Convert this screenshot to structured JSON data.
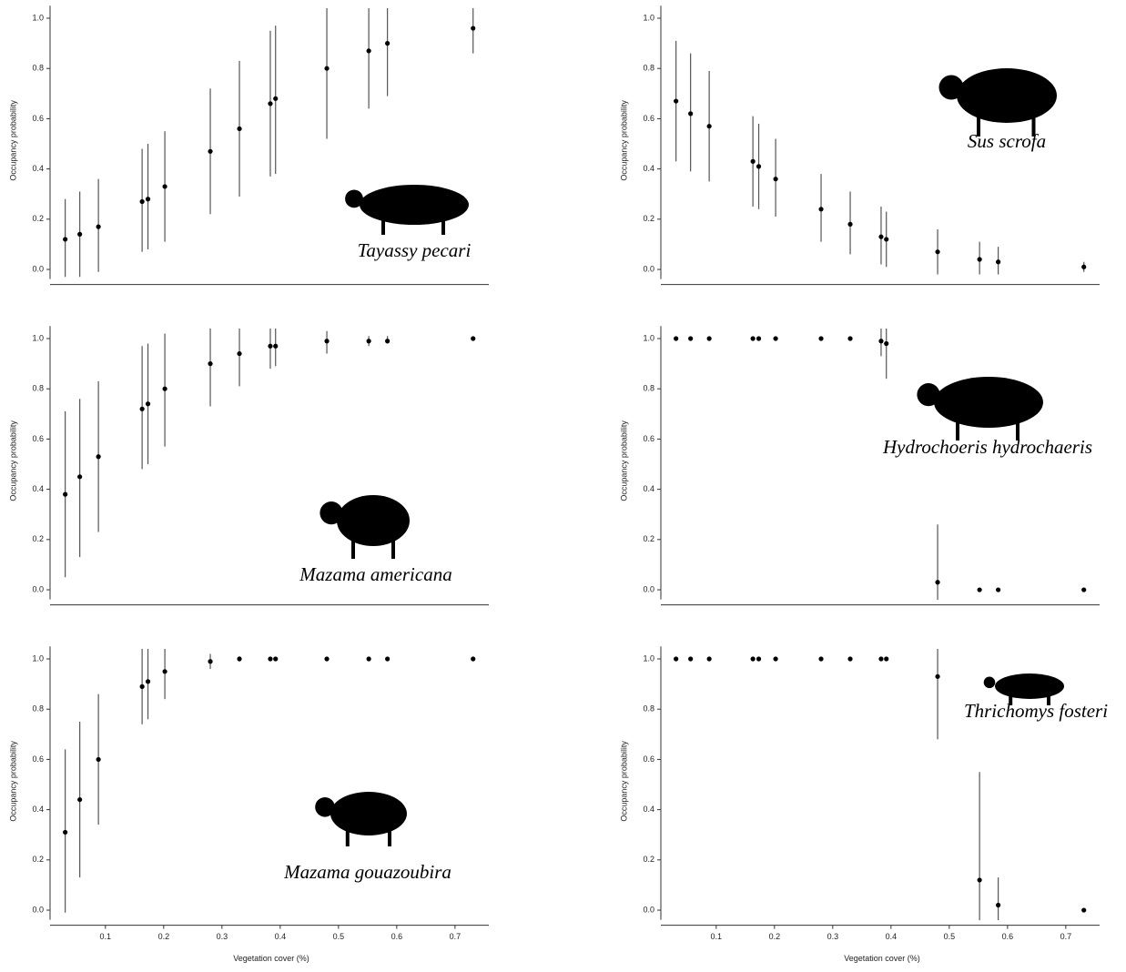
{
  "chart_data": [
    {
      "type": "scatter",
      "title": "Tayassy pecari",
      "ylabel": "Occupancy probability",
      "x": [
        0.031,
        0.056,
        0.088,
        0.163,
        0.173,
        0.202,
        0.28,
        0.33,
        0.383,
        0.392,
        0.48,
        0.552,
        0.584,
        0.731
      ],
      "values": [
        0.12,
        0.14,
        0.17,
        0.27,
        0.28,
        0.33,
        0.47,
        0.56,
        0.66,
        0.68,
        0.8,
        0.87,
        0.9,
        0.96
      ],
      "lower": [
        -0.03,
        -0.03,
        -0.01,
        0.07,
        0.08,
        0.11,
        0.22,
        0.29,
        0.37,
        0.38,
        0.52,
        0.64,
        0.69,
        0.86
      ],
      "upper": [
        0.28,
        0.31,
        0.36,
        0.48,
        0.5,
        0.55,
        0.72,
        0.83,
        0.95,
        0.97,
        1.04,
        1.04,
        1.04,
        1.04
      ],
      "xlim": [
        0.005,
        0.758
      ],
      "ylim": [
        -0.06,
        1.05
      ],
      "yticks": [
        {
          "value": 0,
          "label": "0.0"
        },
        0.2,
        0.4,
        0.6,
        0.8,
        {
          "value": 1,
          "label": "1.0"
        }
      ]
    },
    {
      "type": "scatter",
      "title": "Mazama americana",
      "ylabel": "Occupancy probability",
      "x": [
        0.031,
        0.056,
        0.088,
        0.163,
        0.173,
        0.202,
        0.28,
        0.33,
        0.383,
        0.392,
        0.48,
        0.552,
        0.584,
        0.731
      ],
      "values": [
        0.38,
        0.45,
        0.53,
        0.72,
        0.74,
        0.8,
        0.9,
        0.94,
        0.97,
        0.97,
        0.99,
        0.99,
        0.99,
        1.0
      ],
      "lower": [
        0.05,
        0.13,
        0.23,
        0.48,
        0.5,
        0.57,
        0.73,
        0.81,
        0.88,
        0.89,
        0.94,
        0.97,
        0.98,
        1.0
      ],
      "upper": [
        0.71,
        0.76,
        0.83,
        0.97,
        0.98,
        1.02,
        1.04,
        1.04,
        1.04,
        1.04,
        1.03,
        1.01,
        1.01,
        1.0
      ],
      "xlim": [
        0.005,
        0.758
      ],
      "ylim": [
        -0.06,
        1.05
      ],
      "yticks": [
        {
          "value": 0,
          "label": "0.0"
        },
        0.2,
        0.4,
        0.6,
        0.8,
        {
          "value": 1,
          "label": "1.0"
        }
      ]
    },
    {
      "type": "scatter",
      "title": "Mazama gouazoubira",
      "ylabel": "Occupancy probability",
      "xlabel": "Vegetation cover (%)",
      "x": [
        0.031,
        0.056,
        0.088,
        0.163,
        0.173,
        0.202,
        0.28,
        0.33,
        0.383,
        0.392,
        0.48,
        0.552,
        0.584,
        0.731
      ],
      "values": [
        0.31,
        0.44,
        0.6,
        0.89,
        0.91,
        0.95,
        0.99,
        1.0,
        1.0,
        1.0,
        1.0,
        1.0,
        1.0,
        1.0
      ],
      "lower": [
        -0.01,
        0.13,
        0.34,
        0.74,
        0.76,
        0.84,
        0.96,
        0.99,
        1.0,
        1.0,
        1.0,
        1.0,
        1.0,
        1.0
      ],
      "upper": [
        0.64,
        0.75,
        0.86,
        1.04,
        1.04,
        1.04,
        1.02,
        1.01,
        1.0,
        1.0,
        1.0,
        1.0,
        1.0,
        1.0
      ],
      "xlim": [
        0.005,
        0.758
      ],
      "ylim": [
        -0.06,
        1.05
      ],
      "xticks": [
        0.1,
        0.2,
        0.3,
        0.4,
        0.5,
        0.6,
        0.7
      ],
      "yticks": [
        {
          "value": 0,
          "label": "0.0"
        },
        0.2,
        0.4,
        0.6,
        0.8,
        {
          "value": 1,
          "label": "1.0"
        }
      ]
    },
    {
      "type": "scatter",
      "title": "Sus scrofa",
      "ylabel": "Occupancy probability",
      "x": [
        0.031,
        0.056,
        0.088,
        0.163,
        0.173,
        0.202,
        0.28,
        0.33,
        0.383,
        0.392,
        0.48,
        0.552,
        0.584,
        0.731
      ],
      "values": [
        0.67,
        0.62,
        0.57,
        0.43,
        0.41,
        0.36,
        0.24,
        0.18,
        0.13,
        0.12,
        0.07,
        0.04,
        0.03,
        0.01
      ],
      "lower": [
        0.43,
        0.39,
        0.35,
        0.25,
        0.24,
        0.21,
        0.11,
        0.06,
        0.02,
        0.01,
        -0.02,
        -0.02,
        -0.02,
        -0.01
      ],
      "upper": [
        0.91,
        0.86,
        0.79,
        0.61,
        0.58,
        0.52,
        0.38,
        0.31,
        0.25,
        0.23,
        0.16,
        0.11,
        0.09,
        0.03
      ],
      "xlim": [
        0.005,
        0.758
      ],
      "ylim": [
        -0.06,
        1.05
      ],
      "yticks": [
        {
          "value": 0,
          "label": "0.0"
        },
        0.2,
        0.4,
        0.6,
        0.8,
        {
          "value": 1,
          "label": "1.0"
        }
      ]
    },
    {
      "type": "scatter",
      "title": "Hydrochoeris hydrochaeris",
      "ylabel": "Occupancy probability",
      "x": [
        0.031,
        0.056,
        0.088,
        0.163,
        0.173,
        0.202,
        0.28,
        0.33,
        0.383,
        0.392,
        0.48,
        0.552,
        0.584,
        0.731
      ],
      "values": [
        1.0,
        1.0,
        1.0,
        1.0,
        1.0,
        1.0,
        1.0,
        1.0,
        0.99,
        0.98,
        0.03,
        0.0,
        0.0,
        0.0
      ],
      "lower": [
        1.0,
        1.0,
        1.0,
        1.0,
        1.0,
        1.0,
        1.0,
        1.0,
        0.93,
        0.84,
        -0.04,
        0.0,
        0.0,
        0.0
      ],
      "upper": [
        1.0,
        1.0,
        1.0,
        1.0,
        1.0,
        1.0,
        1.0,
        1.0,
        1.04,
        1.04,
        0.26,
        0.0,
        0.0,
        0.0
      ],
      "xlim": [
        0.005,
        0.758
      ],
      "ylim": [
        -0.06,
        1.05
      ],
      "yticks": [
        {
          "value": 0,
          "label": "0.0"
        },
        0.2,
        0.4,
        0.6,
        0.8,
        {
          "value": 1,
          "label": "1.0"
        }
      ]
    },
    {
      "type": "scatter",
      "title": "Thrichomys fosteri",
      "ylabel": "Occupancy probability",
      "xlabel": "Vegetation cover (%)",
      "x": [
        0.031,
        0.056,
        0.088,
        0.163,
        0.173,
        0.202,
        0.28,
        0.33,
        0.383,
        0.392,
        0.48,
        0.552,
        0.584,
        0.731
      ],
      "values": [
        1.0,
        1.0,
        1.0,
        1.0,
        1.0,
        1.0,
        1.0,
        1.0,
        1.0,
        1.0,
        0.93,
        0.12,
        0.02,
        0.0
      ],
      "lower": [
        1.0,
        1.0,
        1.0,
        1.0,
        1.0,
        1.0,
        1.0,
        1.0,
        1.0,
        1.0,
        0.68,
        -0.04,
        -0.04,
        0.0
      ],
      "upper": [
        1.0,
        1.0,
        1.0,
        1.0,
        1.0,
        1.0,
        1.0,
        1.0,
        1.0,
        1.0,
        1.04,
        0.55,
        0.13,
        0.0
      ],
      "xlim": [
        0.005,
        0.758
      ],
      "ylim": [
        -0.06,
        1.05
      ],
      "xticks": [
        0.1,
        0.2,
        0.3,
        0.4,
        0.5,
        0.6,
        0.7
      ],
      "yticks": [
        {
          "value": 0,
          "label": "0.0"
        },
        0.2,
        0.4,
        0.6,
        0.8,
        {
          "value": 1,
          "label": "1.0"
        }
      ]
    }
  ]
}
